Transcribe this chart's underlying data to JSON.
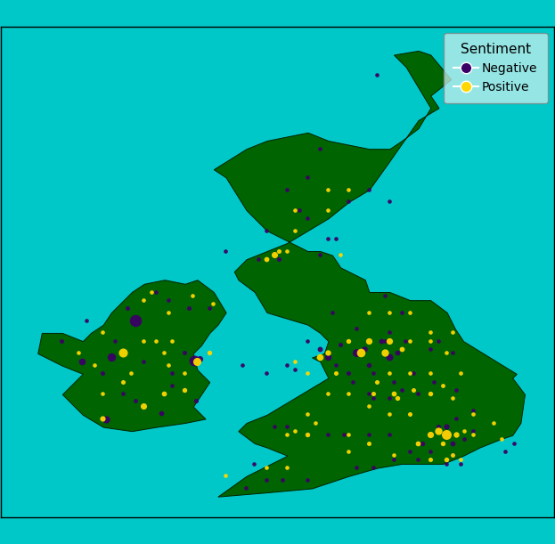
{
  "background_color": "#00C8C8",
  "land_color": "#006400",
  "border_color": "#002200",
  "negative_color": "#3B0066",
  "positive_color": "#FFD700",
  "legend_title": "Sentiment",
  "legend_neg": "Negative",
  "legend_pos": "Positive",
  "xlim": [
    -11.0,
    2.5
  ],
  "ylim": [
    49.5,
    61.5
  ],
  "figsize": [
    6.23,
    6.11
  ],
  "dpi": 100,
  "negative_points": [
    [
      -8.45,
      51.9,
      35
    ],
    [
      -7.1,
      52.05,
      16
    ],
    [
      -6.25,
      52.35,
      14
    ],
    [
      -7.72,
      52.35,
      12
    ],
    [
      -8.02,
      52.52,
      11
    ],
    [
      -6.82,
      52.72,
      11
    ],
    [
      -6.28,
      53.33,
      75
    ],
    [
      -6.15,
      53.38,
      26
    ],
    [
      -6.52,
      53.52,
      13
    ],
    [
      -8.32,
      53.42,
      46
    ],
    [
      -9.02,
      53.32,
      30
    ],
    [
      -8.52,
      53.02,
      13
    ],
    [
      -7.72,
      54.32,
      95
    ],
    [
      -7.92,
      54.62,
      13
    ],
    [
      -6.42,
      54.62,
      13
    ],
    [
      -4.22,
      55.82,
      13
    ],
    [
      -3.22,
      55.92,
      11
    ],
    [
      -2.52,
      57.22,
      11
    ],
    [
      -3.22,
      58.52,
      11
    ],
    [
      -1.82,
      60.32,
      11
    ],
    [
      -3.02,
      53.42,
      28
    ],
    [
      -2.32,
      53.52,
      42
    ],
    [
      -2.12,
      53.62,
      22
    ],
    [
      -1.52,
      53.42,
      32
    ],
    [
      -1.32,
      53.52,
      17
    ],
    [
      -2.72,
      53.72,
      13
    ],
    [
      -2.02,
      52.52,
      11
    ],
    [
      -1.22,
      52.62,
      11
    ],
    [
      -0.12,
      51.52,
      55
    ],
    [
      0.02,
      51.32,
      17
    ],
    [
      -0.12,
      50.82,
      11
    ],
    [
      0.22,
      50.82,
      11
    ],
    [
      -4.12,
      50.42,
      11
    ],
    [
      -4.82,
      50.82,
      11
    ],
    [
      1.32,
      51.12,
      11
    ],
    [
      -6.82,
      53.02,
      11
    ],
    [
      -7.52,
      53.32,
      11
    ],
    [
      -1.62,
      54.92,
      11
    ],
    [
      -2.92,
      54.52,
      11
    ],
    [
      -0.12,
      51.72,
      20
    ],
    [
      -0.72,
      51.32,
      15
    ],
    [
      -4.02,
      53.22,
      11
    ],
    [
      -5.12,
      53.22,
      11
    ],
    [
      -4.52,
      53.02,
      11
    ],
    [
      -3.82,
      53.12,
      11
    ],
    [
      -2.82,
      53.22,
      11
    ],
    [
      -2.42,
      52.82,
      11
    ],
    [
      -1.92,
      53.02,
      11
    ],
    [
      -1.42,
      52.82,
      11
    ],
    [
      -0.92,
      53.02,
      11
    ],
    [
      -0.42,
      52.82,
      11
    ],
    [
      0.12,
      51.92,
      11
    ],
    [
      0.52,
      52.12,
      11
    ],
    [
      -3.72,
      57.02,
      11
    ],
    [
      -4.52,
      56.52,
      11
    ],
    [
      -5.52,
      56.02,
      11
    ],
    [
      -4.72,
      55.82,
      11
    ],
    [
      -1.52,
      57.22,
      11
    ],
    [
      -3.52,
      56.82,
      11
    ],
    [
      -3.22,
      53.62,
      18
    ],
    [
      -1.72,
      53.82,
      17
    ],
    [
      -1.12,
      53.82,
      11
    ],
    [
      -2.02,
      53.22,
      15
    ],
    [
      -3.52,
      53.82,
      11
    ],
    [
      -2.52,
      53.02,
      13
    ],
    [
      -1.52,
      52.42,
      11
    ],
    [
      -0.82,
      52.52,
      11
    ],
    [
      -1.92,
      52.42,
      11
    ],
    [
      -1.62,
      53.82,
      11
    ],
    [
      -0.52,
      53.62,
      11
    ],
    [
      -0.32,
      53.82,
      11
    ],
    [
      0.12,
      52.62,
      11
    ],
    [
      -0.52,
      51.52,
      17
    ],
    [
      -0.32,
      51.72,
      13
    ],
    [
      0.32,
      51.42,
      11
    ],
    [
      0.52,
      51.62,
      11
    ],
    [
      0.02,
      51.02,
      11
    ],
    [
      -0.82,
      50.92,
      11
    ],
    [
      -1.42,
      50.92,
      11
    ],
    [
      -1.92,
      50.72,
      11
    ],
    [
      -2.32,
      50.72,
      11
    ],
    [
      -3.52,
      50.42,
      11
    ],
    [
      -5.02,
      50.22,
      11
    ],
    [
      -4.52,
      50.42,
      11
    ],
    [
      -3.52,
      51.52,
      11
    ],
    [
      -3.02,
      51.52,
      11
    ],
    [
      -2.62,
      51.52,
      11
    ],
    [
      -2.02,
      51.52,
      11
    ],
    [
      -1.52,
      51.52,
      11
    ],
    [
      -1.02,
      51.12,
      11
    ],
    [
      -0.52,
      51.12,
      11
    ],
    [
      1.52,
      51.32,
      11
    ],
    [
      -2.02,
      57.52,
      11
    ],
    [
      -4.32,
      51.72,
      11
    ],
    [
      -4.02,
      51.72,
      11
    ],
    [
      -8.22,
      53.82,
      11
    ],
    [
      -1.22,
      54.52,
      11
    ],
    [
      0.02,
      53.52,
      11
    ],
    [
      -2.32,
      54.12,
      11
    ],
    [
      -1.52,
      54.02,
      11
    ],
    [
      -9.52,
      53.82,
      13
    ],
    [
      -8.92,
      54.32,
      11
    ],
    [
      -6.92,
      54.82,
      11
    ],
    [
      -5.92,
      54.62,
      11
    ],
    [
      -7.22,
      55.02,
      11
    ],
    [
      -4.02,
      57.52,
      11
    ],
    [
      -3.52,
      57.82,
      11
    ],
    [
      -3.02,
      56.32,
      11
    ],
    [
      -2.82,
      56.32,
      11
    ]
  ],
  "positive_points": [
    [
      -8.52,
      51.92,
      20
    ],
    [
      -7.52,
      52.22,
      26
    ],
    [
      -7.02,
      52.52,
      17
    ],
    [
      -8.02,
      52.82,
      13
    ],
    [
      -6.92,
      53.22,
      11
    ],
    [
      -6.22,
      53.32,
      43
    ],
    [
      -5.92,
      53.52,
      15
    ],
    [
      -8.02,
      53.52,
      53
    ],
    [
      -7.52,
      53.82,
      11
    ],
    [
      -6.92,
      54.52,
      11
    ],
    [
      -7.52,
      54.82,
      11
    ],
    [
      -5.82,
      54.72,
      11
    ],
    [
      -6.32,
      54.92,
      11
    ],
    [
      -4.32,
      55.92,
      26
    ],
    [
      -4.52,
      55.82,
      17
    ],
    [
      -3.02,
      57.02,
      11
    ],
    [
      -2.52,
      57.52,
      11
    ],
    [
      -3.22,
      53.42,
      30
    ],
    [
      -3.02,
      53.52,
      21
    ],
    [
      -2.22,
      53.52,
      48
    ],
    [
      -2.02,
      53.82,
      27
    ],
    [
      -1.52,
      53.82,
      27
    ],
    [
      -1.62,
      53.52,
      36
    ],
    [
      -1.22,
      53.62,
      17
    ],
    [
      -2.52,
      53.82,
      15
    ],
    [
      -1.92,
      52.52,
      13
    ],
    [
      -1.42,
      52.52,
      17
    ],
    [
      -0.92,
      52.62,
      13
    ],
    [
      -0.52,
      52.52,
      15
    ],
    [
      -0.12,
      51.52,
      63
    ],
    [
      -0.32,
      51.62,
      36
    ],
    [
      0.12,
      51.52,
      21
    ],
    [
      -0.52,
      51.52,
      27
    ],
    [
      -0.82,
      51.32,
      17
    ],
    [
      -0.22,
      51.32,
      15
    ],
    [
      0.02,
      51.02,
      13
    ],
    [
      0.52,
      51.52,
      11
    ],
    [
      -0.12,
      50.92,
      15
    ],
    [
      -0.52,
      50.92,
      13
    ],
    [
      -1.42,
      51.02,
      11
    ],
    [
      -2.52,
      51.52,
      11
    ],
    [
      -3.52,
      51.52,
      15
    ],
    [
      -4.02,
      50.72,
      11
    ],
    [
      0.52,
      52.02,
      11
    ],
    [
      1.02,
      51.82,
      11
    ],
    [
      -4.22,
      56.02,
      13
    ],
    [
      -3.82,
      57.02,
      11
    ],
    [
      -6.52,
      53.02,
      11
    ],
    [
      -7.02,
      53.52,
      11
    ],
    [
      -0.52,
      53.02,
      11
    ],
    [
      -0.12,
      53.52,
      11
    ],
    [
      -2.02,
      54.52,
      11
    ],
    [
      -1.52,
      54.52,
      11
    ],
    [
      -0.52,
      54.02,
      11
    ],
    [
      0.02,
      54.02,
      11
    ],
    [
      -1.82,
      52.82,
      13
    ],
    [
      -1.32,
      52.42,
      15
    ],
    [
      0.02,
      52.42,
      11
    ],
    [
      -0.22,
      52.72,
      12
    ],
    [
      -3.82,
      51.62,
      11
    ],
    [
      -3.32,
      51.82,
      11
    ],
    [
      -6.52,
      52.62,
      15
    ],
    [
      -8.72,
      53.22,
      11
    ],
    [
      -8.52,
      54.02,
      11
    ],
    [
      -7.22,
      53.82,
      11
    ],
    [
      -3.82,
      56.52,
      11
    ],
    [
      -3.82,
      53.32,
      11
    ],
    [
      -2.82,
      53.02,
      13
    ],
    [
      -1.02,
      52.02,
      13
    ],
    [
      -2.02,
      52.22,
      11
    ],
    [
      -1.52,
      52.02,
      11
    ],
    [
      0.32,
      51.62,
      11
    ],
    [
      0.22,
      50.92,
      11
    ],
    [
      -2.02,
      51.32,
      13
    ],
    [
      -4.52,
      50.72,
      11
    ],
    [
      -3.52,
      53.02,
      11
    ],
    [
      -3.02,
      52.52,
      11
    ],
    [
      -2.52,
      52.52,
      11
    ],
    [
      1.22,
      51.42,
      11
    ],
    [
      -3.02,
      57.52,
      11
    ],
    [
      -4.02,
      51.52,
      11
    ],
    [
      -3.52,
      52.02,
      11
    ],
    [
      -8.52,
      52.52,
      11
    ],
    [
      -1.52,
      53.02,
      11
    ],
    [
      -1.02,
      53.02,
      11
    ],
    [
      0.22,
      53.02,
      11
    ],
    [
      -0.52,
      53.82,
      11
    ],
    [
      -1.02,
      54.52,
      11
    ],
    [
      -1.02,
      53.82,
      11
    ],
    [
      -6.82,
      53.82,
      11
    ],
    [
      -7.82,
      53.02,
      11
    ],
    [
      -9.12,
      53.52,
      11
    ],
    [
      -4.02,
      56.02,
      11
    ],
    [
      -2.72,
      55.92,
      11
    ],
    [
      -7.32,
      55.02,
      11
    ],
    [
      -5.52,
      50.52,
      11
    ],
    [
      -2.52,
      51.12,
      11
    ]
  ]
}
